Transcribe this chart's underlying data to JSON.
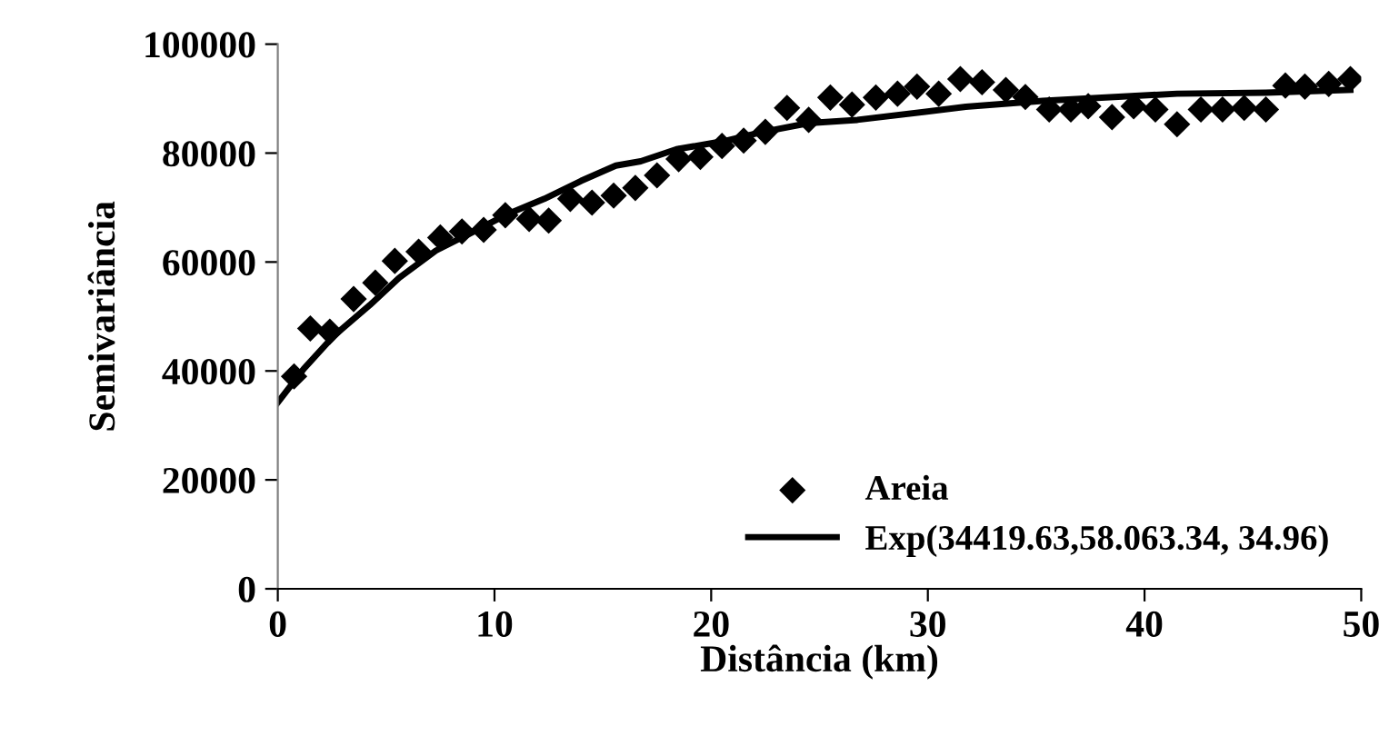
{
  "chart_data": {
    "type": "scatter",
    "xlabel": "Distância (km)",
    "ylabel": "Semivariância",
    "xlim": [
      0,
      50
    ],
    "ylim": [
      0,
      100000
    ],
    "xticks": [
      0,
      10,
      20,
      30,
      40,
      50
    ],
    "yticks": [
      0,
      20000,
      40000,
      60000,
      80000,
      100000
    ],
    "grid": false,
    "legend": "bottom right",
    "series": [
      {
        "name": "Areia",
        "marker": "diamond",
        "color": "#000000",
        "x": [
          0.75,
          1.5,
          2.4,
          3.5,
          4.5,
          5.4,
          6.5,
          7.5,
          8.5,
          9.5,
          10.5,
          11.6,
          12.5,
          13.5,
          14.5,
          15.5,
          16.5,
          17.5,
          18.5,
          19.5,
          20.5,
          21.5,
          22.5,
          23.5,
          24.5,
          25.5,
          26.5,
          27.6,
          28.6,
          29.5,
          30.5,
          31.5,
          32.5,
          33.6,
          34.5,
          35.6,
          36.6,
          37.4,
          38.5,
          39.5,
          40.5,
          41.5,
          42.6,
          43.6,
          44.6,
          45.6,
          46.5,
          47.4,
          48.5,
          49.5
        ],
        "values": [
          39000,
          47800,
          47200,
          53200,
          56200,
          60200,
          61900,
          64500,
          65600,
          65900,
          68600,
          67900,
          67600,
          71600,
          70900,
          72200,
          73600,
          75900,
          78900,
          79300,
          81300,
          82300,
          83900,
          88300,
          86100,
          90200,
          88900,
          90200,
          90900,
          92200,
          90900,
          93600,
          93000,
          91600,
          90300,
          88000,
          88000,
          88600,
          86600,
          88600,
          88000,
          85300,
          88000,
          88000,
          88300,
          88000,
          92400,
          92200,
          92700,
          93600
        ]
      },
      {
        "name": "Exp(34419.63,58.063.34, 34.96)",
        "type": "line",
        "line_style": "solid",
        "marker": "none",
        "color": "#000000",
        "x": [
          0,
          1.2,
          2.6,
          4.25,
          5.6,
          7.3,
          9.0,
          10.6,
          12.3,
          14.0,
          15.6,
          16.75,
          18.4,
          20.6,
          22.3,
          24.5,
          26.75,
          31.75,
          35.3,
          41.5,
          45.6,
          49.5
        ],
        "values": [
          34200,
          40400,
          46500,
          52100,
          57100,
          62100,
          65500,
          68800,
          71600,
          74900,
          77700,
          78500,
          80700,
          82200,
          83800,
          85500,
          86100,
          88500,
          89600,
          90900,
          91100,
          91600
        ]
      }
    ]
  }
}
